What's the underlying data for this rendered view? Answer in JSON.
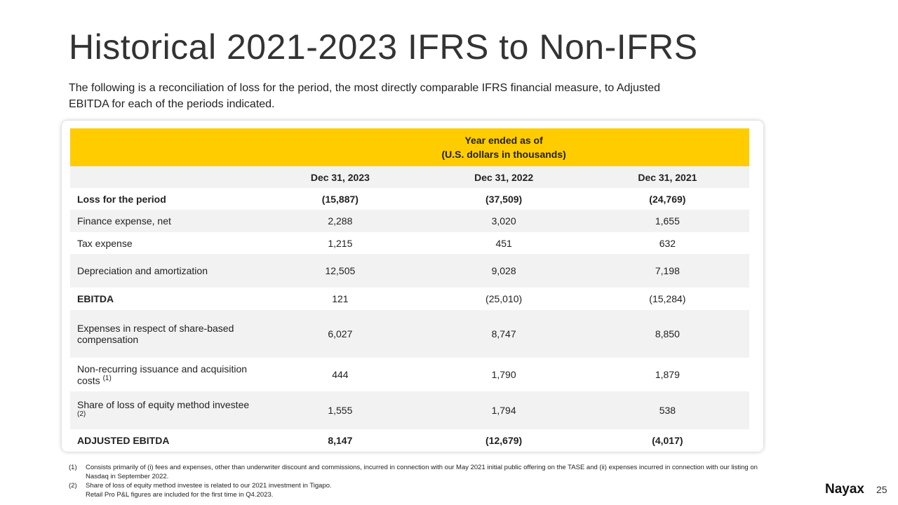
{
  "header": {
    "title": "Historical 2021-2023 IFRS to Non-IFRS",
    "subtitle": "The following is a reconciliation of loss for the period, the most directly comparable IFRS financial measure, to Adjusted EBITDA for each of the periods indicated."
  },
  "table": {
    "banner": [
      "Year ended as of",
      "(U.S. dollars in thousands)"
    ],
    "columns": [
      "Dec 31, 2023",
      "Dec 31, 2022",
      "Dec 31, 2021"
    ],
    "rows": [
      {
        "label": "Loss for the period",
        "values": [
          "(15,887)",
          "(37,509)",
          "(24,769)"
        ]
      },
      {
        "label": "Finance expense, net",
        "values": [
          "2,288",
          "3,020",
          "1,655"
        ]
      },
      {
        "label": "Tax expense",
        "values": [
          "1,215",
          "451",
          "632"
        ]
      },
      {
        "label": "Depreciation and amortization",
        "values": [
          "12,505",
          "9,028",
          "7,198"
        ]
      },
      {
        "label": "EBITDA",
        "values": [
          "121",
          "(25,010)",
          "(15,284)"
        ]
      },
      {
        "label": "Expenses in respect of share-based compensation",
        "values": [
          "6,027",
          "8,747",
          "8,850"
        ]
      },
      {
        "label": "Non-recurring issuance and acquisition costs",
        "note": "(1)",
        "values": [
          "444",
          "1,790",
          "1,879"
        ]
      },
      {
        "label": "Share of loss of equity method investee",
        "note": "(2)",
        "values": [
          "1,555",
          "1,794",
          "538"
        ]
      },
      {
        "label": "ADJUSTED EBITDA",
        "values": [
          "8,147",
          "(12,679)",
          "(4,017)"
        ]
      }
    ]
  },
  "footnotes": [
    {
      "marker": "(1)",
      "lines": [
        "Consists primarily of (i) fees and expenses, other than underwriter discount and commissions, incurred in connection with our May 2021 initial public offering on the TASE and (ii) expenses incurred in connection with our listing on Nasdaq in September 2022."
      ]
    },
    {
      "marker": "(2)",
      "lines": [
        "Share of loss of equity method investee is related to our 2021 investment in Tigapo.",
        "Retail Pro P&L figures are included for the first time in Q4.2023."
      ]
    }
  ],
  "footer": {
    "logo": "Nayax",
    "page": "25"
  }
}
